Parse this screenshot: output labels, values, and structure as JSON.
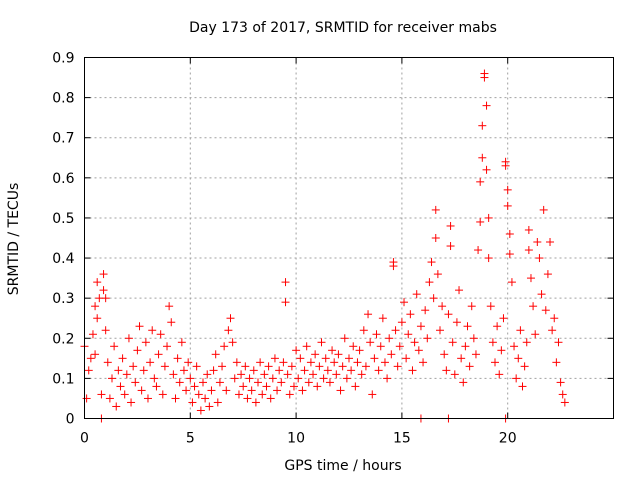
{
  "chart_data": {
    "type": "scatter",
    "title": "Day 173 of 2017, SRMTID for receiver mabs",
    "xlabel": "GPS time / hours",
    "ylabel": "SRMTID / TECUs",
    "xlim": [
      0,
      25
    ],
    "ylim": [
      0,
      0.9
    ],
    "x_ticks": [
      0,
      5,
      10,
      15,
      20
    ],
    "x_tick_labels": [
      "0",
      "5",
      "10",
      "15",
      "20"
    ],
    "y_ticks": [
      0,
      0.1,
      0.2,
      0.3,
      0.4,
      0.5,
      0.6,
      0.7,
      0.8,
      0.9
    ],
    "y_tick_labels": [
      "0",
      "0.1",
      "0.2",
      "0.3",
      "0.4",
      "0.5",
      "0.6",
      "0.7",
      "0.8",
      "0.9"
    ],
    "grid": true,
    "marker": "plus",
    "color": "#ff0000",
    "series": [
      {
        "name": "SRMTID",
        "points": [
          [
            0.0,
            0.18
          ],
          [
            0.1,
            0.05
          ],
          [
            0.2,
            0.12
          ],
          [
            0.3,
            0.15
          ],
          [
            0.4,
            0.21
          ],
          [
            0.5,
            0.16
          ],
          [
            0.5,
            0.28
          ],
          [
            0.6,
            0.25
          ],
          [
            0.6,
            0.34
          ],
          [
            0.7,
            0.3
          ],
          [
            0.8,
            0.06
          ],
          [
            0.9,
            0.36
          ],
          [
            0.9,
            0.32
          ],
          [
            1.0,
            0.3
          ],
          [
            1.0,
            0.22
          ],
          [
            1.1,
            0.14
          ],
          [
            1.2,
            0.05
          ],
          [
            1.3,
            0.1
          ],
          [
            1.4,
            0.18
          ],
          [
            1.5,
            0.03
          ],
          [
            1.6,
            0.12
          ],
          [
            1.7,
            0.08
          ],
          [
            1.8,
            0.15
          ],
          [
            1.9,
            0.06
          ],
          [
            2.0,
            0.11
          ],
          [
            2.1,
            0.2
          ],
          [
            2.2,
            0.04
          ],
          [
            2.3,
            0.13
          ],
          [
            2.4,
            0.09
          ],
          [
            2.5,
            0.17
          ],
          [
            2.6,
            0.23
          ],
          [
            2.7,
            0.07
          ],
          [
            2.8,
            0.12
          ],
          [
            2.9,
            0.19
          ],
          [
            3.0,
            0.05
          ],
          [
            3.1,
            0.14
          ],
          [
            3.2,
            0.22
          ],
          [
            3.3,
            0.1
          ],
          [
            3.4,
            0.08
          ],
          [
            3.5,
            0.16
          ],
          [
            3.6,
            0.21
          ],
          [
            3.7,
            0.06
          ],
          [
            3.8,
            0.13
          ],
          [
            3.9,
            0.18
          ],
          [
            4.0,
            0.28
          ],
          [
            4.1,
            0.24
          ],
          [
            4.2,
            0.11
          ],
          [
            4.3,
            0.05
          ],
          [
            4.4,
            0.15
          ],
          [
            4.5,
            0.09
          ],
          [
            4.6,
            0.19
          ],
          [
            4.7,
            0.12
          ],
          [
            4.8,
            0.07
          ],
          [
            4.9,
            0.14
          ],
          [
            5.0,
            0.1
          ],
          [
            5.1,
            0.04
          ],
          [
            5.2,
            0.08
          ],
          [
            5.3,
            0.13
          ],
          [
            5.4,
            0.06
          ],
          [
            5.5,
            0.02
          ],
          [
            5.6,
            0.09
          ],
          [
            5.7,
            0.05
          ],
          [
            5.8,
            0.11
          ],
          [
            5.9,
            0.03
          ],
          [
            6.0,
            0.07
          ],
          [
            6.1,
            0.12
          ],
          [
            6.2,
            0.16
          ],
          [
            6.3,
            0.04
          ],
          [
            6.4,
            0.09
          ],
          [
            6.5,
            0.13
          ],
          [
            6.6,
            0.18
          ],
          [
            6.7,
            0.07
          ],
          [
            6.8,
            0.22
          ],
          [
            6.9,
            0.25
          ],
          [
            7.0,
            0.19
          ],
          [
            7.1,
            0.1
          ],
          [
            7.2,
            0.14
          ],
          [
            7.3,
            0.06
          ],
          [
            7.4,
            0.11
          ],
          [
            7.5,
            0.08
          ],
          [
            7.6,
            0.13
          ],
          [
            7.7,
            0.05
          ],
          [
            7.8,
            0.1
          ],
          [
            7.9,
            0.07
          ],
          [
            8.0,
            0.12
          ],
          [
            8.1,
            0.04
          ],
          [
            8.2,
            0.09
          ],
          [
            8.3,
            0.14
          ],
          [
            8.4,
            0.06
          ],
          [
            8.5,
            0.11
          ],
          [
            8.6,
            0.08
          ],
          [
            8.7,
            0.13
          ],
          [
            8.8,
            0.05
          ],
          [
            8.9,
            0.1
          ],
          [
            9.0,
            0.15
          ],
          [
            9.1,
            0.07
          ],
          [
            9.2,
            0.12
          ],
          [
            9.3,
            0.09
          ],
          [
            9.4,
            0.14
          ],
          [
            9.5,
            0.29
          ],
          [
            9.5,
            0.34
          ],
          [
            9.6,
            0.11
          ],
          [
            9.7,
            0.06
          ],
          [
            9.8,
            0.13
          ],
          [
            9.9,
            0.08
          ],
          [
            10.0,
            0.17
          ],
          [
            10.1,
            0.1
          ],
          [
            10.2,
            0.15
          ],
          [
            10.3,
            0.07
          ],
          [
            10.4,
            0.12
          ],
          [
            10.5,
            0.18
          ],
          [
            10.6,
            0.09
          ],
          [
            10.7,
            0.14
          ],
          [
            10.8,
            0.11
          ],
          [
            10.9,
            0.16
          ],
          [
            11.0,
            0.08
          ],
          [
            11.1,
            0.13
          ],
          [
            11.2,
            0.19
          ],
          [
            11.3,
            0.1
          ],
          [
            11.4,
            0.15
          ],
          [
            11.5,
            0.12
          ],
          [
            11.6,
            0.09
          ],
          [
            11.7,
            0.17
          ],
          [
            11.8,
            0.14
          ],
          [
            11.9,
            0.11
          ],
          [
            12.0,
            0.16
          ],
          [
            12.1,
            0.07
          ],
          [
            12.2,
            0.13
          ],
          [
            12.3,
            0.2
          ],
          [
            12.4,
            0.1
          ],
          [
            12.5,
            0.15
          ],
          [
            12.6,
            0.12
          ],
          [
            12.7,
            0.18
          ],
          [
            12.8,
            0.08
          ],
          [
            12.9,
            0.14
          ],
          [
            13.0,
            0.17
          ],
          [
            13.1,
            0.11
          ],
          [
            13.2,
            0.22
          ],
          [
            13.3,
            0.13
          ],
          [
            13.4,
            0.26
          ],
          [
            13.5,
            0.19
          ],
          [
            13.6,
            0.06
          ],
          [
            13.7,
            0.15
          ],
          [
            13.8,
            0.21
          ],
          [
            13.9,
            0.12
          ],
          [
            14.0,
            0.18
          ],
          [
            14.1,
            0.25
          ],
          [
            14.2,
            0.14
          ],
          [
            14.3,
            0.1
          ],
          [
            14.4,
            0.2
          ],
          [
            14.5,
            0.16
          ],
          [
            14.6,
            0.39
          ],
          [
            14.6,
            0.38
          ],
          [
            14.7,
            0.22
          ],
          [
            14.8,
            0.13
          ],
          [
            14.9,
            0.18
          ],
          [
            15.0,
            0.24
          ],
          [
            15.1,
            0.29
          ],
          [
            15.2,
            0.15
          ],
          [
            15.3,
            0.21
          ],
          [
            15.4,
            0.26
          ],
          [
            15.5,
            0.12
          ],
          [
            15.6,
            0.19
          ],
          [
            15.7,
            0.31
          ],
          [
            15.8,
            0.17
          ],
          [
            15.9,
            0.23
          ],
          [
            16.0,
            0.14
          ],
          [
            16.1,
            0.27
          ],
          [
            16.2,
            0.2
          ],
          [
            16.3,
            0.34
          ],
          [
            16.4,
            0.39
          ],
          [
            16.5,
            0.3
          ],
          [
            16.6,
            0.45
          ],
          [
            16.6,
            0.52
          ],
          [
            16.7,
            0.36
          ],
          [
            16.8,
            0.22
          ],
          [
            16.9,
            0.28
          ],
          [
            17.0,
            0.16
          ],
          [
            17.1,
            0.12
          ],
          [
            17.2,
            0.26
          ],
          [
            17.3,
            0.48
          ],
          [
            17.3,
            0.43
          ],
          [
            17.4,
            0.19
          ],
          [
            17.5,
            0.11
          ],
          [
            17.6,
            0.24
          ],
          [
            17.7,
            0.32
          ],
          [
            17.8,
            0.15
          ],
          [
            17.9,
            0.09
          ],
          [
            18.0,
            0.18
          ],
          [
            18.1,
            0.23
          ],
          [
            18.2,
            0.13
          ],
          [
            18.3,
            0.28
          ],
          [
            18.4,
            0.2
          ],
          [
            18.5,
            0.16
          ],
          [
            18.6,
            0.42
          ],
          [
            18.7,
            0.49
          ],
          [
            18.7,
            0.59
          ],
          [
            18.8,
            0.65
          ],
          [
            18.8,
            0.73
          ],
          [
            18.9,
            0.86
          ],
          [
            18.9,
            0.85
          ],
          [
            19.0,
            0.78
          ],
          [
            19.0,
            0.62
          ],
          [
            19.1,
            0.5
          ],
          [
            19.1,
            0.4
          ],
          [
            19.2,
            0.28
          ],
          [
            19.3,
            0.19
          ],
          [
            19.4,
            0.14
          ],
          [
            19.5,
            0.23
          ],
          [
            19.6,
            0.11
          ],
          [
            19.7,
            0.17
          ],
          [
            19.8,
            0.25
          ],
          [
            19.9,
            0.64
          ],
          [
            19.9,
            0.63
          ],
          [
            20.0,
            0.57
          ],
          [
            20.0,
            0.53
          ],
          [
            20.1,
            0.46
          ],
          [
            20.1,
            0.41
          ],
          [
            20.2,
            0.34
          ],
          [
            20.3,
            0.18
          ],
          [
            20.4,
            0.1
          ],
          [
            20.5,
            0.15
          ],
          [
            20.6,
            0.22
          ],
          [
            20.7,
            0.08
          ],
          [
            20.8,
            0.13
          ],
          [
            20.9,
            0.19
          ],
          [
            21.0,
            0.47
          ],
          [
            21.0,
            0.42
          ],
          [
            21.1,
            0.35
          ],
          [
            21.2,
            0.28
          ],
          [
            21.3,
            0.21
          ],
          [
            21.4,
            0.44
          ],
          [
            21.5,
            0.4
          ],
          [
            21.6,
            0.31
          ],
          [
            21.7,
            0.52
          ],
          [
            21.8,
            0.27
          ],
          [
            21.9,
            0.36
          ],
          [
            22.0,
            0.44
          ],
          [
            22.1,
            0.22
          ],
          [
            22.2,
            0.25
          ],
          [
            22.3,
            0.14
          ],
          [
            22.4,
            0.19
          ],
          [
            22.5,
            0.09
          ],
          [
            22.6,
            0.06
          ],
          [
            22.7,
            0.04
          ],
          [
            0.8,
            0.0
          ],
          [
            15.9,
            0.0
          ],
          [
            17.2,
            0.0
          ],
          [
            19.9,
            0.0
          ]
        ]
      }
    ]
  }
}
